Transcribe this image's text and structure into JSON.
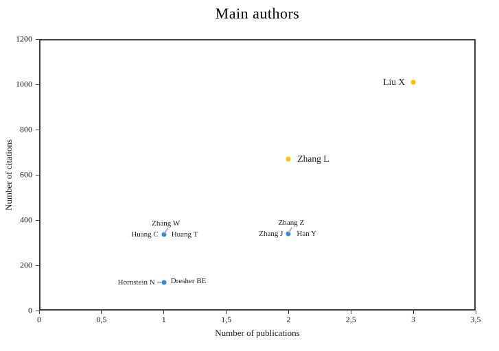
{
  "chart_data": {
    "type": "scatter",
    "title": "Main authors",
    "xlabel": "Number of publications",
    "ylabel": "Number of citations",
    "xlim": [
      0,
      3.5
    ],
    "ylim": [
      0,
      1200
    ],
    "grid": false,
    "legend": false,
    "xticks": [
      {
        "v": 0,
        "label": "0"
      },
      {
        "v": 0.5,
        "label": "0,5"
      },
      {
        "v": 1,
        "label": "1"
      },
      {
        "v": 1.5,
        "label": "1,5"
      },
      {
        "v": 2,
        "label": "2"
      },
      {
        "v": 2.5,
        "label": "2,5"
      },
      {
        "v": 3,
        "label": "3"
      },
      {
        "v": 3.5,
        "label": "3,5"
      }
    ],
    "yticks": [
      {
        "v": 0,
        "label": "0"
      },
      {
        "v": 200,
        "label": "200"
      },
      {
        "v": 400,
        "label": "400"
      },
      {
        "v": 600,
        "label": "600"
      },
      {
        "v": 800,
        "label": "800"
      },
      {
        "v": 1000,
        "label": "1000"
      },
      {
        "v": 1200,
        "label": "1200"
      }
    ],
    "colors": {
      "highlight": "#FFC000",
      "regular": "#3289E2",
      "label_text": "#262626",
      "leader": "#9FB6CF",
      "axis": "#3f3f3f"
    },
    "points": [
      {
        "x": 3,
        "y": 1010,
        "series": "highlight",
        "labels": [
          {
            "text": "Liu X",
            "side": "left",
            "size": "large",
            "gap": 12
          }
        ]
      },
      {
        "x": 2,
        "y": 670,
        "series": "highlight",
        "labels": [
          {
            "text": "Zhang L",
            "side": "right",
            "size": "large",
            "gap": 13
          }
        ]
      },
      {
        "x": 1,
        "y": 335,
        "series": "regular",
        "labels": [
          {
            "text": "Zhang W",
            "side": "above",
            "size": "small",
            "dx": 3,
            "leader": "diag"
          },
          {
            "text": "Huang C",
            "side": "left",
            "size": "small",
            "gap": 8
          },
          {
            "text": "Huang T",
            "side": "right",
            "size": "small",
            "gap": 11
          }
        ]
      },
      {
        "x": 2,
        "y": 340,
        "series": "regular",
        "labels": [
          {
            "text": "Zhang Z",
            "side": "above",
            "size": "small",
            "dx": 4,
            "leader": "diag"
          },
          {
            "text": "Zhang J",
            "side": "left",
            "size": "small",
            "gap": 8
          },
          {
            "text": "Han Y",
            "side": "right",
            "size": "small",
            "gap": 12
          }
        ]
      },
      {
        "x": 1,
        "y": 125,
        "series": "regular",
        "labels": [
          {
            "text": "Hornstein N",
            "side": "left",
            "size": "small",
            "gap": 13,
            "leader": "dash"
          },
          {
            "text": "Dresher BE",
            "side": "right",
            "size": "small",
            "gap": 10,
            "dy": -2
          }
        ]
      }
    ]
  }
}
